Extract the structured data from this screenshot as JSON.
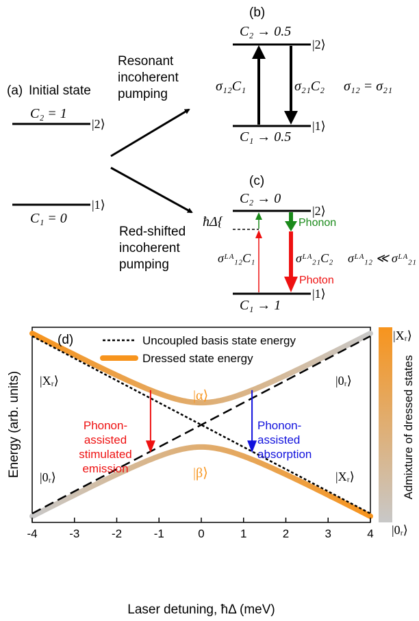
{
  "panel_a": {
    "tag": "(a)",
    "title": "Initial state",
    "c2_text": "C₂ = 1",
    "c1_text": "C₁ = 0",
    "ket2": "|2⟩",
    "ket1": "|1⟩"
  },
  "resonant_label": [
    "Resonant",
    "incoherent",
    "pumping"
  ],
  "redshift_label": [
    "Red-shifted",
    "incoherent",
    "pumping"
  ],
  "panel_b": {
    "tag": "(b)",
    "c2_text": "C₂ → 0.5",
    "c1_text": "C₁ → 0.5",
    "ket2": "|2⟩",
    "ket1": "|1⟩",
    "up_rate": "σ₁₂C₁",
    "down_rate": "σ₂₁C₂",
    "relation": "σ₁₂ = σ₂₁"
  },
  "panel_c": {
    "tag": "(c)",
    "c2_text": "C₂ → 0",
    "c1_text": "C₁ → 1",
    "ket2": "|2⟩",
    "ket1": "|1⟩",
    "detuning": "ħΔ{",
    "up_rate": "σᴸᴬ₁₂C₁",
    "down_rate": "σᴸᴬ₂₁C₂",
    "relation": "σᴸᴬ₁₂ ≪ σᴸᴬ₂₁",
    "phonon": "Phonon",
    "photon": "Photon",
    "phonon_color": "#1a8a1a",
    "photon_color": "#ee1111"
  },
  "panel_d": {
    "tag": "(d)",
    "legend_uncoupled": "Uncoupled basis state energy",
    "legend_dressed": "Dressed state energy",
    "ylabel": "Energy (arb. units)",
    "xlabel": "Laser detuning, ħΔ (meV)",
    "colorbar_label": "Admixture of dressed states",
    "colorbar_top": "|Xᵣ⟩",
    "colorbar_bottom": "|0ᵣ⟩",
    "state_xr_left": "|Xᵣ⟩",
    "state_0r_left": "|0ᵣ⟩",
    "state_0r_right": "|0ᵣ⟩",
    "state_xr_right": "|Xᵣ⟩",
    "alpha": "|α⟩",
    "beta": "|β⟩",
    "emission_label": [
      "Phonon-",
      "assisted",
      "stimulated",
      "emission"
    ],
    "absorption_label": [
      "Phonon-",
      "assisted",
      "absorption"
    ],
    "emission_color": "#ee1111",
    "absorption_color": "#1111dd",
    "orange": "#f7941d",
    "gray": "#c8c8c8",
    "chart_data": {
      "type": "line",
      "x_ticks": [
        "-4",
        "-3",
        "-2",
        "-1",
        "0",
        "1",
        "2",
        "3",
        "4"
      ],
      "xlim": [
        -4,
        4
      ],
      "xlabel": "Laser detuning, ħΔ (meV)",
      "ylabel": "Energy (arb. units)",
      "coupling_gap": 1.0,
      "emission_arrow_x": -1.2,
      "absorption_arrow_x": 1.2
    }
  }
}
